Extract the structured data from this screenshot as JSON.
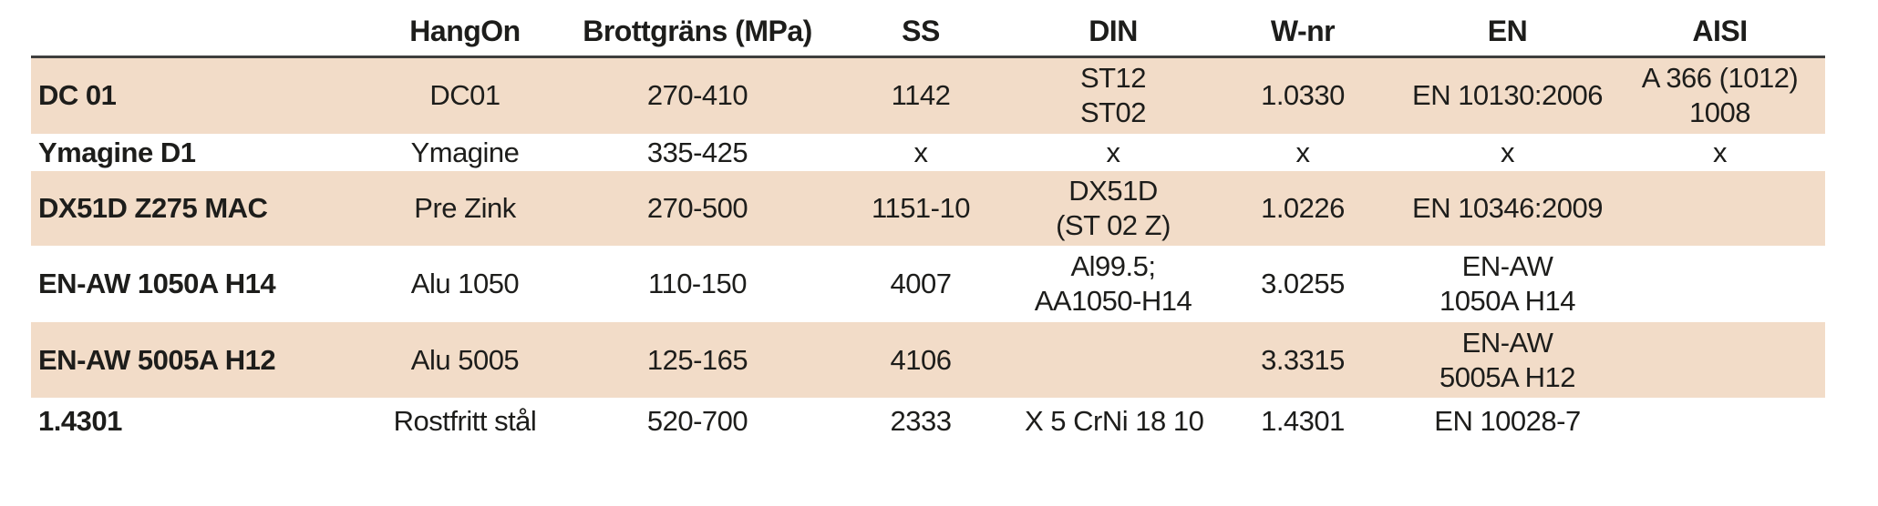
{
  "table": {
    "title": "material-specification-cross-reference",
    "colors": {
      "row_shade": "#f2dcc8",
      "header_rule": "#3f3f3e",
      "text": "#1d1d1b",
      "background": "#ffffff"
    },
    "columns": [
      "",
      "HangOn",
      "Brottgräns (MPa)",
      "SS",
      "DIN",
      "W-nr",
      "EN",
      "AISI"
    ],
    "rows": [
      {
        "shaded": true,
        "cells": [
          [
            "DC 01"
          ],
          [
            "DC01"
          ],
          [
            "270-410"
          ],
          [
            "1142"
          ],
          [
            "ST12",
            "ST02"
          ],
          [
            "1.0330"
          ],
          [
            "EN 10130:2006"
          ],
          [
            "A 366 (1012)",
            "1008"
          ]
        ]
      },
      {
        "shaded": false,
        "cells": [
          [
            "Ymagine D1"
          ],
          [
            "Ymagine"
          ],
          [
            "335-425"
          ],
          [
            "x"
          ],
          [
            "x"
          ],
          [
            "x"
          ],
          [
            "x"
          ],
          [
            "x"
          ]
        ]
      },
      {
        "shaded": true,
        "cells": [
          [
            "DX51D Z275 MAC"
          ],
          [
            "Pre Zink"
          ],
          [
            "270-500"
          ],
          [
            "1151-10"
          ],
          [
            "DX51D",
            "(ST 02 Z)"
          ],
          [
            "1.0226"
          ],
          [
            "EN 10346:2009"
          ],
          []
        ]
      },
      {
        "shaded": false,
        "cells": [
          [
            "EN-AW 1050A H14"
          ],
          [
            "Alu 1050"
          ],
          [
            "110-150"
          ],
          [
            "4007"
          ],
          [
            "Al99.5;",
            "AA1050-H14"
          ],
          [
            "3.0255"
          ],
          [
            "EN-AW",
            "1050A H14"
          ],
          []
        ]
      },
      {
        "shaded": true,
        "cells": [
          [
            "EN-AW 5005A H12"
          ],
          [
            "Alu 5005"
          ],
          [
            "125-165"
          ],
          [
            "4106"
          ],
          [],
          [
            "3.3315"
          ],
          [
            "EN-AW",
            "5005A H12"
          ],
          []
        ]
      },
      {
        "shaded": false,
        "cells": [
          [
            "1.4301"
          ],
          [
            "Rostfritt stål"
          ],
          [
            "520-700"
          ],
          [
            "2333"
          ],
          [
            "X 5 CrNi 18 10"
          ],
          [
            "1.4301"
          ],
          [
            "EN 10028-7"
          ],
          []
        ]
      }
    ]
  }
}
